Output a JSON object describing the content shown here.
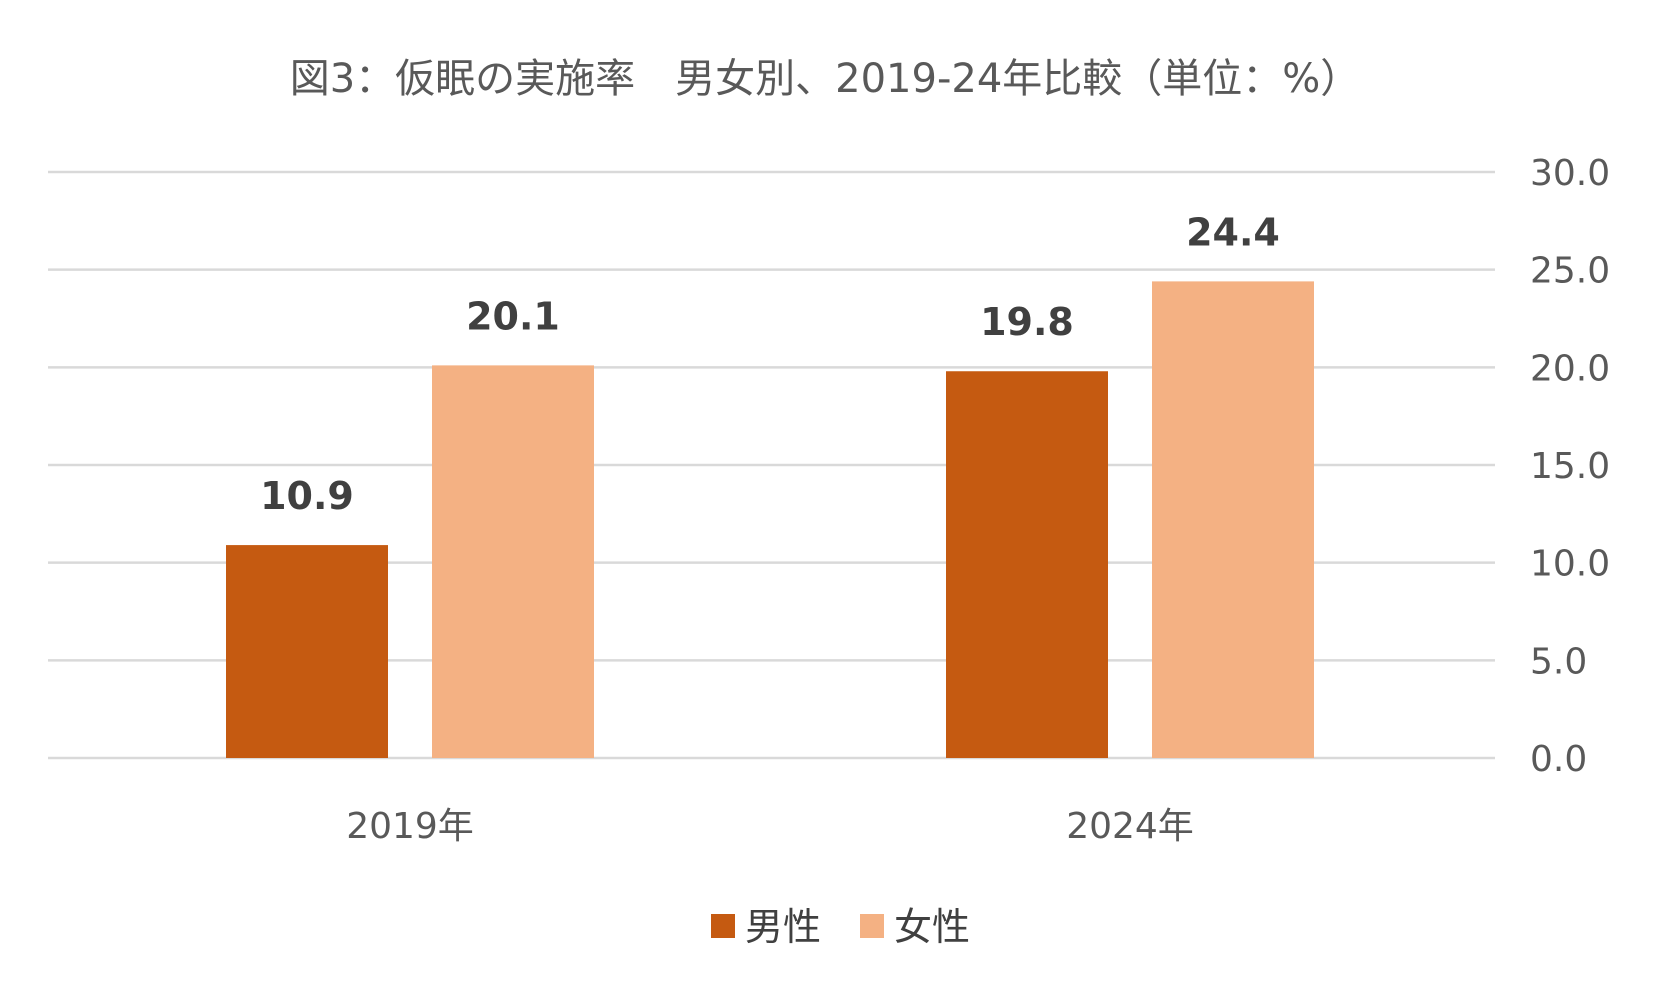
{
  "chart_data": {
    "type": "bar",
    "title": "図3：仮眠の実施率　男女別、2019-24年比較（単位：%）",
    "categories": [
      "2019年",
      "2024年"
    ],
    "series": [
      {
        "name": "男性",
        "values": [
          10.9,
          19.8
        ],
        "labels": [
          "10.9",
          "19.8"
        ],
        "color": "#c55a11"
      },
      {
        "name": "女性",
        "values": [
          20.1,
          24.4
        ],
        "labels": [
          "20.1",
          "24.4"
        ],
        "color": "#f4b183"
      }
    ],
    "ylim": [
      0,
      30
    ],
    "yticks": [
      0,
      5,
      10,
      15,
      20,
      25,
      30
    ],
    "ytick_labels": [
      "0.0",
      "5.0",
      "10.0",
      "15.0",
      "20.0",
      "25.0",
      "30.0"
    ],
    "y_axis_side": "right",
    "grid": true,
    "legend_position": "bottom",
    "xlabel": "",
    "ylabel": ""
  },
  "colors": {
    "text": "#595959",
    "data_label": "#404040",
    "gridline": "#d9d9d9"
  }
}
